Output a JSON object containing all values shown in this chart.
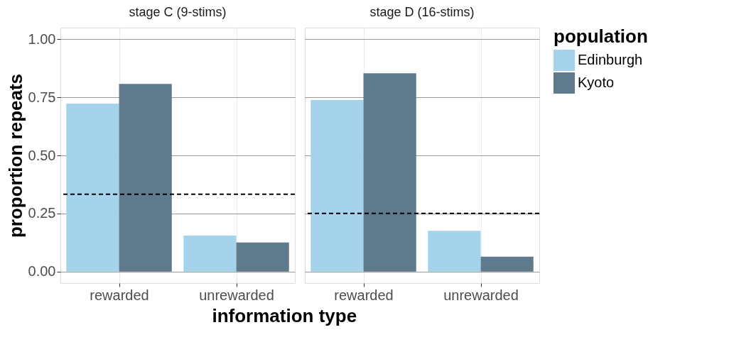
{
  "chart_data": [
    {
      "type": "bar",
      "title": "stage C (9-stims)",
      "xlabel": "information type",
      "ylabel": "proportion repeats",
      "categories": [
        "rewarded",
        "unrewarded"
      ],
      "series": [
        {
          "name": "Edinburgh",
          "color": "#a6d3ec",
          "values": [
            0.723,
            0.155
          ]
        },
        {
          "name": "Kyoto",
          "color": "#5f7a8c",
          "values": [
            0.808,
            0.125
          ]
        }
      ],
      "ylim": [
        -0.05,
        1.05
      ],
      "yticks": [
        {
          "value": 0,
          "label": "0.00"
        },
        0.25,
        {
          "value": 0.5,
          "label": "0.50"
        },
        0.75,
        {
          "value": 1,
          "label": "1.00"
        }
      ],
      "grid": true,
      "legend": "right",
      "legend_title": "population",
      "ref_lines": [
        {
          "axis": "y",
          "value": 0.333,
          "color": "#000000",
          "line_style": "dashed"
        }
      ]
    },
    {
      "type": "bar",
      "title": "stage D (16-stims)",
      "categories": [
        "rewarded",
        "unrewarded"
      ],
      "series": [
        {
          "name": "Edinburgh",
          "color": "#a6d3ec",
          "values": [
            0.738,
            0.175
          ]
        },
        {
          "name": "Kyoto",
          "color": "#5f7a8c",
          "values": [
            0.854,
            0.064
          ]
        }
      ],
      "ylim": [
        -0.05,
        1.05
      ],
      "yticks": [
        0,
        0.25,
        0.5,
        0.75,
        1
      ],
      "grid": true,
      "legend": "right",
      "tick_labels": "x",
      "ref_lines": [
        {
          "axis": "y",
          "value": 0.25,
          "color": "#000000",
          "line_style": "dashed"
        }
      ]
    }
  ]
}
